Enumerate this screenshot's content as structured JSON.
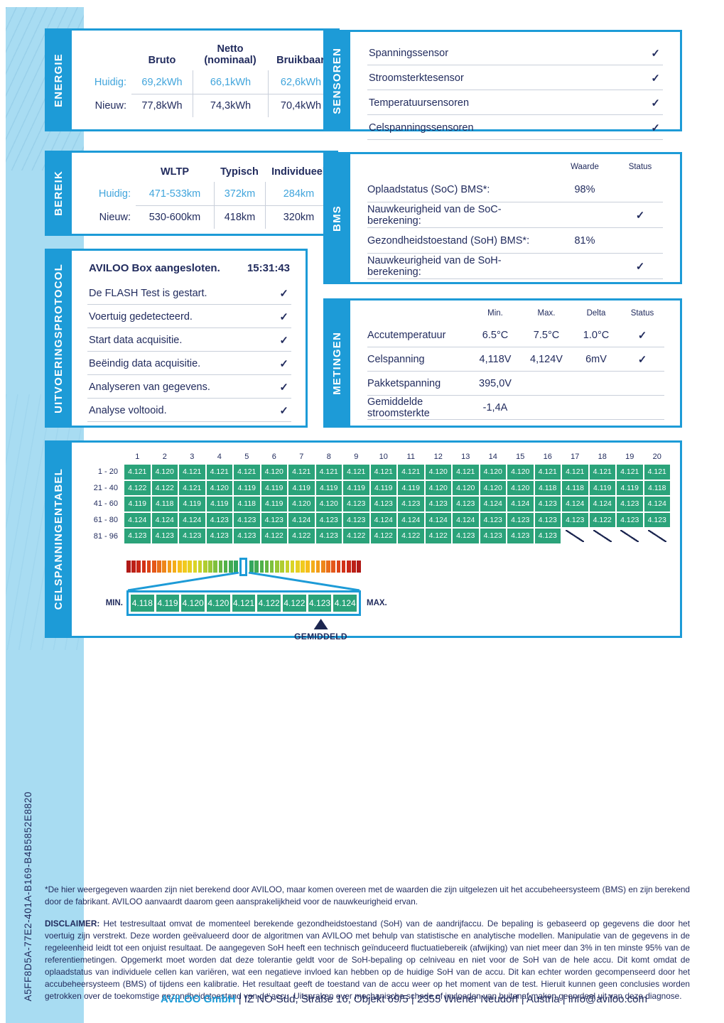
{
  "serial": "A5FF8D5A-77E2-401A-B169-B4B5852E8820",
  "icons": {
    "check": "✓"
  },
  "colors": {
    "accent": "#1d9bd7",
    "navy": "#222c5e",
    "highlight_blue_text": "#41a5dc",
    "side_strip": "#a8dcf2",
    "cell_green": "#2ba37a",
    "gradient_stops": [
      "#b01a17",
      "#cf2b16",
      "#e65d1a",
      "#f29a1a",
      "#f7c71c",
      "#d9d526",
      "#9fca36",
      "#5bb445",
      "#33a65c"
    ]
  },
  "energie": {
    "label": "ENERGIE",
    "columns": [
      "Bruto",
      "Netto (nominaal)",
      "Bruikbaar"
    ],
    "rows": [
      {
        "label": "Huidig:",
        "values": [
          "69,2kWh",
          "66,1kWh",
          "62,6kWh"
        ],
        "highlight": true
      },
      {
        "label": "Nieuw:",
        "values": [
          "77,8kWh",
          "74,3kWh",
          "70,4kWh"
        ],
        "highlight": false
      }
    ]
  },
  "bereik": {
    "label": "BEREIK",
    "columns": [
      "WLTP",
      "Typisch",
      "Individueel"
    ],
    "rows": [
      {
        "label": "Huidig:",
        "values": [
          "471-533km",
          "372km",
          "284km"
        ],
        "highlight": true
      },
      {
        "label": "Nieuw:",
        "values": [
          "530-600km",
          "418km",
          "320km"
        ],
        "highlight": false
      }
    ]
  },
  "protocol": {
    "label": "UITVOERINGSPROTOCOL",
    "header_text": "AVILOO Box aangesloten.",
    "header_time": "15:31:43",
    "items": [
      "De FLASH Test is gestart.",
      "Voertuig gedetecteerd.",
      "Start data acquisitie.",
      "Beëindig data acquisitie.",
      "Analyseren van gegevens.",
      "Analyse voltooid."
    ]
  },
  "sensoren": {
    "label": "SENSOREN",
    "items": [
      "Spanningssensor",
      "Stroomsterktesensor",
      "Temperatuursensoren",
      "Celspanningssensoren"
    ]
  },
  "bms": {
    "label": "BMS",
    "col_waarde": "Waarde",
    "col_status": "Status",
    "rows": [
      {
        "label": "Oplaadstatus (SoC) BMS*:",
        "waarde": "98%",
        "check": false
      },
      {
        "label": "Nauwkeurigheid van de SoC-berekening:",
        "waarde": "",
        "check": true
      },
      {
        "label": "Gezondheidstoestand (SoH) BMS*:",
        "waarde": "81%",
        "check": false
      },
      {
        "label": "Nauwkeurigheid van de SoH-berekening:",
        "waarde": "",
        "check": true
      }
    ]
  },
  "metingen": {
    "label": "METINGEN",
    "columns": [
      "Min.",
      "Max.",
      "Delta",
      "Status"
    ],
    "rows": [
      {
        "label": "Accutemperatuur",
        "min": "6.5°C",
        "max": "7.5°C",
        "delta": "1.0°C",
        "check": true
      },
      {
        "label": "Celspanning",
        "min": "4,118V",
        "max": "4,124V",
        "delta": "6mV",
        "check": true
      },
      {
        "label": "Pakketspanning",
        "min": "395,0V",
        "max": "",
        "delta": "",
        "check": false
      },
      {
        "label": "Gemiddelde stroomsterkte",
        "min": "-1,4A",
        "max": "",
        "delta": "",
        "check": false
      }
    ]
  },
  "celspanningen": {
    "label": "CELSPANNINGENTABEL",
    "col_numbers": [
      "1",
      "2",
      "3",
      "4",
      "5",
      "6",
      "7",
      "8",
      "9",
      "10",
      "11",
      "12",
      "13",
      "14",
      "15",
      "16",
      "17",
      "18",
      "19",
      "20"
    ],
    "rows": [
      {
        "label": "1 - 20",
        "values": [
          "4.121",
          "4.120",
          "4.121",
          "4.121",
          "4.121",
          "4.120",
          "4.121",
          "4.121",
          "4.121",
          "4.121",
          "4.121",
          "4.120",
          "4.121",
          "4.120",
          "4.120",
          "4.121",
          "4.121",
          "4.121",
          "4.121",
          "4.121"
        ]
      },
      {
        "label": "21 - 40",
        "values": [
          "4.122",
          "4.122",
          "4.121",
          "4.120",
          "4.119",
          "4.119",
          "4.119",
          "4.119",
          "4.119",
          "4.119",
          "4.119",
          "4.120",
          "4.120",
          "4.120",
          "4.120",
          "4.118",
          "4.118",
          "4.119",
          "4.119",
          "4.118"
        ]
      },
      {
        "label": "41 - 60",
        "values": [
          "4.119",
          "4.118",
          "4.119",
          "4.119",
          "4.118",
          "4.119",
          "4.120",
          "4.120",
          "4.123",
          "4.123",
          "4.123",
          "4.123",
          "4.123",
          "4.124",
          "4.124",
          "4.123",
          "4.124",
          "4.124",
          "4.123",
          "4.124"
        ]
      },
      {
        "label": "61 - 80",
        "values": [
          "4.124",
          "4.124",
          "4.124",
          "4.123",
          "4.123",
          "4.123",
          "4.124",
          "4.123",
          "4.123",
          "4.124",
          "4.124",
          "4.124",
          "4.124",
          "4.123",
          "4.123",
          "4.123",
          "4.123",
          "4.122",
          "4.123",
          "4.123"
        ]
      },
      {
        "label": "81 - 96",
        "values": [
          "4.123",
          "4.123",
          "4.123",
          "4.123",
          "4.123",
          "4.122",
          "4.122",
          "4.123",
          "4.122",
          "4.122",
          "4.122",
          "4.122",
          "4.123",
          "4.123",
          "4.123",
          "4.123"
        ]
      }
    ],
    "scale": {
      "min_label": "MIN.",
      "max_label": "MAX.",
      "avg_label": "GEMIDDELD",
      "zoom_values": [
        "4.118",
        "4.119",
        "4.120",
        "4.120",
        "4.121",
        "4.122",
        "4.122",
        "4.123",
        "4.124"
      ],
      "avg_index": 6
    }
  },
  "footnote": "*De hier weergegeven waarden zijn niet berekend door AVILOO, maar komen overeen met de waarden die zijn uitgelezen uit het accubeheersysteem (BMS) en zijn berekend door de fabrikant. AVILOO aanvaardt daarom geen aansprakelijkheid voor de nauwkeurigheid ervan.",
  "disclaimer_label": "DISCLAIMER:",
  "disclaimer_text": "Het testresultaat omvat de momenteel berekende gezondheidstoestand (SoH) van de aandrijfaccu. De bepaling is gebaseerd op gegevens die door het voertuig zijn verstrekt. Deze worden geëvalueerd door de algoritmen van AVILOO met behulp van statistische en analytische modellen. Manipulatie van de gegevens in de regeleenheid leidt tot een onjuist resultaat. De aangegeven SoH heeft een technisch geïnduceerd fluctuatiebereik (afwijking) van niet meer dan 3% in ten minste 95% van de referentiemetingen. Opgemerkt moet worden dat deze tolerantie geldt voor de SoH-bepaling op celniveau en niet voor de SoH van de hele accu. Dit komt omdat de oplaadstatus van individuele cellen kan variëren, wat een negatieve invloed kan hebben op de huidige SoH van de accu. Dit kan echter worden gecompenseerd door het accubeheersysteem (BMS) of tijdens een kalibratie. Het resultaat geeft de toestand van de accu weer op het moment van de test. Hieruit kunnen geen conclusies worden getrokken over de toekomstige gezondheidstoestand van de accu. Uitspraken over mechanische schade of invloeden van buitenaf maken geen deel uit van deze diagnose.",
  "footer": {
    "company": "AVILOO GmbH",
    "rest": " | IZ NÖ-Süd, Straße 16, Objekt 69/5 | 2355 Wiener Neudorf | Austria | info@aviloo.com"
  }
}
